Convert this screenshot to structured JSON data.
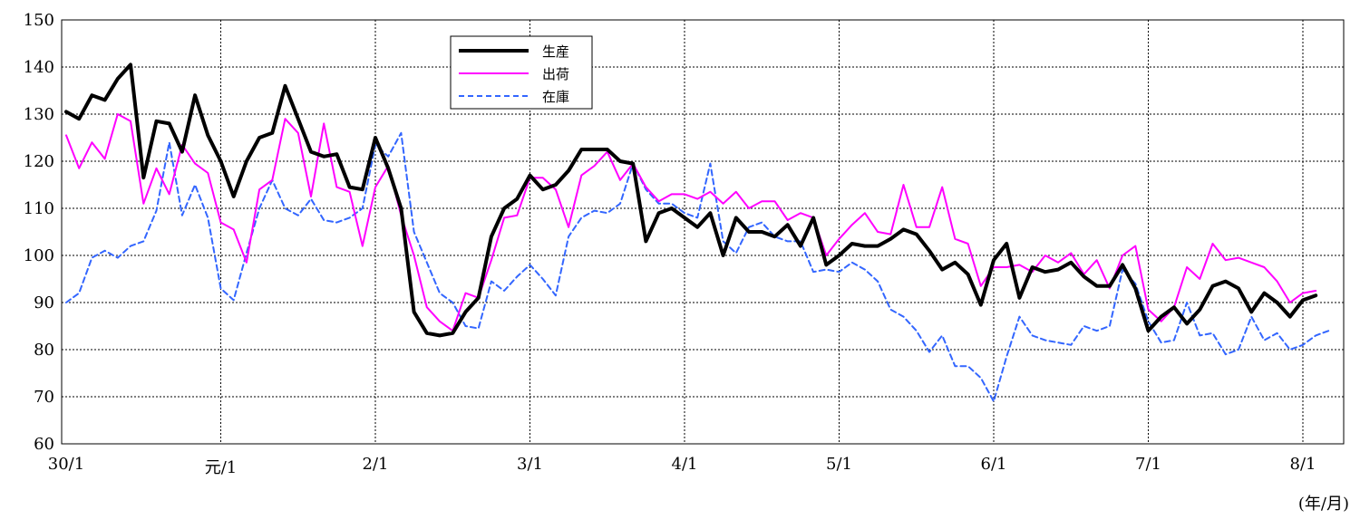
{
  "chart_data": {
    "type": "line",
    "title": "",
    "xlabel": "",
    "ylabel": "",
    "unit_label": "(年/月)",
    "ylim": [
      60,
      150
    ],
    "yticks": [
      60,
      70,
      80,
      90,
      100,
      110,
      120,
      130,
      140,
      150
    ],
    "x_range": [
      0,
      94
    ],
    "x_ticks": [
      {
        "index": 0,
        "label": "30/1"
      },
      {
        "index": 12,
        "label": "元/1"
      },
      {
        "index": 24,
        "label": "2/1"
      },
      {
        "index": 36,
        "label": "3/1"
      },
      {
        "index": 48,
        "label": "4/1"
      },
      {
        "index": 60,
        "label": "5/1"
      },
      {
        "index": 72,
        "label": "6/1"
      },
      {
        "index": 84,
        "label": "7/1"
      },
      {
        "index": 96,
        "label": "8/1"
      }
    ],
    "grid": true,
    "legend_position": "top-center",
    "series": [
      {
        "name": "生産",
        "color": "#000000",
        "style": "solid-thick",
        "values": [
          130.5,
          129,
          134,
          133,
          137.5,
          140.5,
          116.5,
          128.5,
          128,
          122,
          134,
          125.5,
          120,
          112.5,
          120,
          125,
          126,
          136,
          129,
          122,
          121,
          121.5,
          114.5,
          114,
          125,
          118.5,
          110,
          88,
          83.5,
          83,
          83.5,
          88,
          91,
          104,
          110,
          112,
          117,
          114,
          115,
          118,
          122.5,
          122.5,
          122.5,
          120,
          119.5,
          103,
          109,
          110,
          108,
          106,
          109,
          100,
          108,
          105,
          105,
          104,
          106.5,
          102,
          108,
          98,
          100,
          102.5,
          102,
          102,
          103.5,
          105.5,
          104.5,
          101,
          97,
          98.5,
          96,
          89.5,
          99,
          102.5,
          91,
          97.5,
          96.5,
          97,
          98.5,
          95.5,
          93.5,
          93.5,
          98,
          93,
          84,
          87,
          89,
          85.5,
          88.5,
          93.5,
          94.5,
          93,
          88,
          92,
          90,
          87,
          90.5,
          91.5
        ]
      },
      {
        "name": "出荷",
        "color": "#ff00ff",
        "style": "solid",
        "values": [
          125.5,
          118.5,
          124,
          120.5,
          130,
          128.5,
          111,
          118.5,
          113,
          123.5,
          119.5,
          117.5,
          107,
          105.5,
          98.5,
          114,
          116,
          129,
          126,
          112.5,
          128,
          114.5,
          113.5,
          102,
          114.5,
          119,
          108.5,
          100,
          89,
          86,
          84,
          92,
          91,
          99,
          108,
          108.5,
          116.5,
          116.5,
          114,
          106,
          117,
          119,
          122,
          116,
          119.5,
          114.5,
          111.5,
          113,
          113,
          112,
          113.5,
          111,
          113.5,
          110,
          111.5,
          111.5,
          107.5,
          109,
          108,
          100,
          103.5,
          106.5,
          109,
          105,
          104.5,
          115,
          106,
          106,
          114.5,
          103.5,
          102.5,
          93.5,
          97.5,
          97.5,
          98,
          96.5,
          100,
          98.5,
          100.5,
          96,
          99,
          93,
          100,
          102,
          88.5,
          86,
          89,
          97.5,
          95,
          102.5,
          99,
          99.5,
          98.5,
          97.5,
          94.5,
          90,
          92,
          92.5
        ]
      },
      {
        "name": "在庫",
        "color": "#3366ff",
        "style": "dashed",
        "values": [
          90,
          92,
          99.5,
          101,
          99.5,
          102,
          103,
          109.5,
          124,
          108.5,
          115,
          108,
          93,
          90.5,
          100.5,
          110,
          116,
          110,
          108.5,
          112,
          107.5,
          107,
          108,
          110,
          123.5,
          121,
          126,
          105,
          98.5,
          92,
          90,
          85,
          84.5,
          94.5,
          92.5,
          95.5,
          98,
          95,
          91.5,
          104,
          108,
          109.5,
          109,
          111,
          119.5,
          114,
          111,
          111,
          109,
          108,
          119.5,
          103,
          100.5,
          106,
          107,
          104,
          103,
          103,
          96.5,
          97,
          96.5,
          98.5,
          97,
          94.5,
          88.5,
          87,
          84,
          79.5,
          83,
          76.5,
          76.5,
          74,
          69,
          78.5,
          87,
          83,
          82,
          81.5,
          81,
          85,
          84,
          85,
          97,
          94,
          86,
          81.5,
          82,
          90,
          83,
          83.5,
          79,
          80,
          87,
          82,
          83.5,
          80,
          81,
          83,
          84
        ]
      }
    ]
  }
}
